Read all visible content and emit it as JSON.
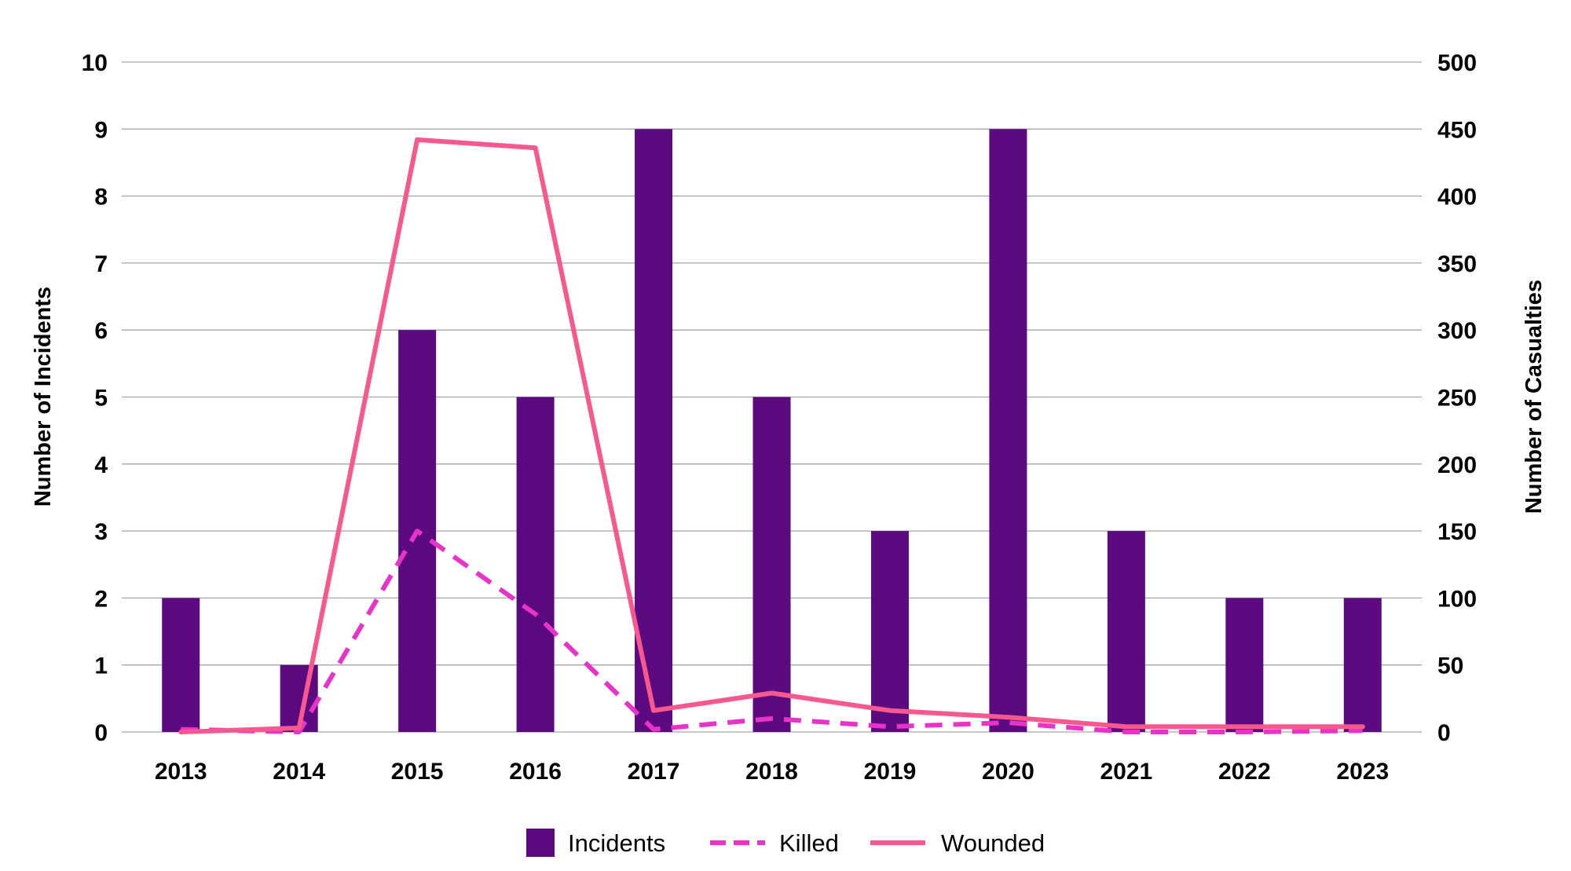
{
  "chart_data": {
    "type": "bar",
    "categories": [
      "2013",
      "2014",
      "2015",
      "2016",
      "2017",
      "2018",
      "2019",
      "2020",
      "2021",
      "2022",
      "2023"
    ],
    "series": [
      {
        "name": "Incidents",
        "kind": "bar",
        "axis": "left",
        "color": "#5c0a80",
        "values": [
          2,
          1,
          6,
          5,
          9,
          5,
          3,
          9,
          3,
          2,
          2
        ]
      },
      {
        "name": "Killed",
        "kind": "line",
        "style": "dashed",
        "axis": "right",
        "color": "#e833c8",
        "values": [
          2,
          0,
          150,
          88,
          2,
          10,
          4,
          7,
          0,
          0,
          1
        ]
      },
      {
        "name": "Wounded",
        "kind": "line",
        "style": "solid",
        "axis": "right",
        "color": "#f7598e",
        "values": [
          0,
          3,
          442,
          436,
          16,
          29,
          16,
          11,
          4,
          4,
          4
        ]
      }
    ],
    "y_left": {
      "label": "Number of Incidents",
      "range": [
        0,
        10
      ],
      "ticks": [
        "0",
        "1",
        "2",
        "3",
        "4",
        "5",
        "6",
        "7",
        "8",
        "9",
        "10"
      ]
    },
    "y_right": {
      "label": "Number of Casualties",
      "range": [
        0,
        500
      ],
      "ticks": [
        "0",
        "50",
        "100",
        "150",
        "200",
        "250",
        "300",
        "350",
        "400",
        "450",
        "500"
      ]
    },
    "grid": true,
    "legend_position": "bottom"
  }
}
